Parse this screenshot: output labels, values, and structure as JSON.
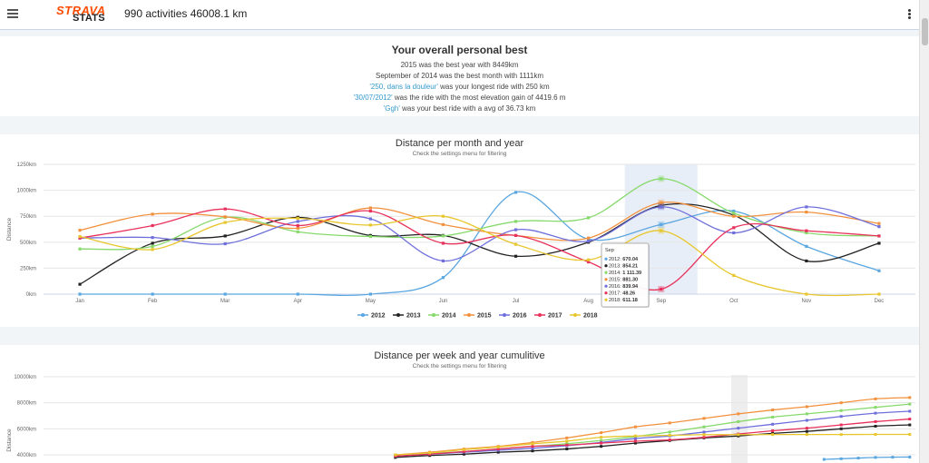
{
  "header": {
    "logo_top": "STRAVA",
    "logo_bottom": "STATS",
    "summary": "990 activities 46008.1 km",
    "menu_icon": "hamburger-icon",
    "more_icon": "vertical-dots-icon"
  },
  "personal_best": {
    "title": "Your overall personal best",
    "best_year": "2015 was the best year with 8449km",
    "best_month": "September of 2014 was the best month with 1111km",
    "longest_ride_name": "'250, dans la douleur'",
    "longest_ride_rest": " was your longest ride with 250 km",
    "elevation_ride_name": "'30/07/2012'",
    "elevation_ride_rest": " was the ride with the most elevation gain of 4419.6 m",
    "avg_ride_name": "'Ggh'",
    "avg_ride_rest": " was your best ride with a avg of 36.73 km"
  },
  "monthly_chart": {
    "title": "Distance per month and year",
    "subtitle": "Check the settings menu for filtering",
    "tooltip": {
      "header": "Sep",
      "rows": [
        {
          "label": "2012:",
          "value": "670.04",
          "color": "#5aa6e0"
        },
        {
          "label": "2013:",
          "value": "854.21",
          "color": "#222222"
        },
        {
          "label": "2014:",
          "value": "1 111.39",
          "color": "#86d96a"
        },
        {
          "label": "2015:",
          "value": "881.30",
          "color": "#f2913d"
        },
        {
          "label": "2016:",
          "value": "839.94",
          "color": "#6f6fdc"
        },
        {
          "label": "2017:",
          "value": "48.26",
          "color": "#e8315b"
        },
        {
          "label": "2018:",
          "value": "611.18",
          "color": "#e8c62d"
        }
      ]
    }
  },
  "weekly_chart": {
    "title": "Distance per week and year cumulitive",
    "subtitle": "Check the settings menu for filtering"
  },
  "chart_data": [
    {
      "type": "line",
      "title": "Distance per month and year",
      "subtitle": "Check the settings menu for filtering",
      "ylabel": "Distance",
      "ylim": [
        0,
        1250
      ],
      "y_ticks": [
        "0km",
        "250km",
        "500km",
        "750km",
        "1000km",
        "1250km"
      ],
      "categories": [
        "Jan",
        "Feb",
        "Mar",
        "Apr",
        "May",
        "Jun",
        "Jul",
        "Aug",
        "Sep",
        "Oct",
        "Nov",
        "Dec"
      ],
      "legend_position": "bottom-center",
      "series": [
        {
          "name": "2012",
          "color": "#5aa6e0",
          "values": [
            0,
            0,
            0,
            0,
            0,
            160,
            980,
            530,
            670,
            800,
            460,
            225
          ]
        },
        {
          "name": "2013",
          "color": "#222222",
          "values": [
            95,
            490,
            560,
            740,
            565,
            565,
            365,
            500,
            854,
            760,
            320,
            490
          ]
        },
        {
          "name": "2014",
          "color": "#86d96a",
          "values": [
            435,
            460,
            740,
            600,
            555,
            560,
            700,
            735,
            1111,
            780,
            590,
            560
          ]
        },
        {
          "name": "2015",
          "color": "#f2913d",
          "values": [
            615,
            770,
            745,
            635,
            830,
            670,
            565,
            540,
            881,
            750,
            790,
            680
          ]
        },
        {
          "name": "2016",
          "color": "#6f6fdc",
          "values": [
            540,
            545,
            485,
            700,
            725,
            320,
            620,
            510,
            840,
            590,
            840,
            650
          ]
        },
        {
          "name": "2017",
          "color": "#e8315b",
          "values": [
            540,
            660,
            820,
            660,
            800,
            490,
            565,
            310,
            48,
            640,
            610,
            560
          ]
        },
        {
          "name": "2018",
          "color": "#e8c62d",
          "values": [
            555,
            430,
            690,
            730,
            665,
            750,
            480,
            330,
            611,
            180,
            0,
            0
          ]
        }
      ]
    },
    {
      "type": "line",
      "title": "Distance per week and year cumulitive",
      "subtitle": "Check the settings menu for filtering",
      "ylabel": "Distance",
      "y_ticks": [
        "4000km",
        "6000km",
        "8000km",
        "10000km"
      ],
      "ylim": [
        0,
        10000
      ],
      "series": [
        {
          "name": "2012",
          "color": "#5aa6e0",
          "x": [
            47,
            48,
            49,
            50,
            51,
            52
          ],
          "values": [
            3650,
            3700,
            3750,
            3800,
            3820,
            3830
          ]
        },
        {
          "name": "2013",
          "color": "#222222",
          "x": [
            22,
            24,
            26,
            28,
            30,
            32,
            34,
            36,
            38,
            40,
            42,
            44,
            46,
            48,
            50,
            52
          ],
          "values": [
            3800,
            3950,
            4050,
            4200,
            4300,
            4450,
            4650,
            4900,
            5100,
            5300,
            5450,
            5650,
            5800,
            6000,
            6200,
            6300
          ]
        },
        {
          "name": "2014",
          "color": "#86d96a",
          "x": [
            22,
            24,
            26,
            28,
            30,
            32,
            34,
            36,
            38,
            40,
            42,
            44,
            46,
            48,
            50,
            52
          ],
          "values": [
            3950,
            4100,
            4250,
            4450,
            4650,
            4850,
            5100,
            5400,
            5750,
            6150,
            6550,
            6900,
            7150,
            7400,
            7650,
            7900
          ]
        },
        {
          "name": "2015",
          "color": "#f2913d",
          "x": [
            22,
            24,
            26,
            28,
            30,
            32,
            34,
            36,
            38,
            40,
            42,
            44,
            46,
            48,
            50,
            52
          ],
          "values": [
            4000,
            4200,
            4450,
            4650,
            4950,
            5300,
            5700,
            6150,
            6450,
            6800,
            7150,
            7450,
            7700,
            8000,
            8300,
            8400
          ]
        },
        {
          "name": "2016",
          "color": "#6f6fdc",
          "x": [
            22,
            24,
            26,
            28,
            30,
            32,
            34,
            36,
            38,
            40,
            42,
            44,
            46,
            48,
            50,
            52
          ],
          "values": [
            3900,
            4050,
            4200,
            4350,
            4500,
            4700,
            4950,
            5250,
            5450,
            5750,
            6050,
            6350,
            6650,
            6950,
            7200,
            7350
          ]
        },
        {
          "name": "2017",
          "color": "#e8315b",
          "x": [
            22,
            24,
            26,
            28,
            30,
            32,
            34,
            36,
            38,
            40,
            42,
            44,
            46,
            48,
            50,
            52
          ],
          "values": [
            3900,
            4050,
            4250,
            4450,
            4650,
            4750,
            4900,
            5050,
            5150,
            5350,
            5600,
            5850,
            6050,
            6300,
            6550,
            6750
          ]
        },
        {
          "name": "2018",
          "color": "#e8c62d",
          "x": [
            22,
            24,
            26,
            28,
            30,
            32,
            34,
            36,
            38,
            40,
            42,
            44,
            46,
            48,
            50,
            52
          ],
          "values": [
            4000,
            4150,
            4400,
            4600,
            4850,
            5050,
            5350,
            5450,
            5500,
            5550,
            5550,
            5560,
            5560,
            5560,
            5570,
            5570
          ]
        }
      ]
    }
  ]
}
